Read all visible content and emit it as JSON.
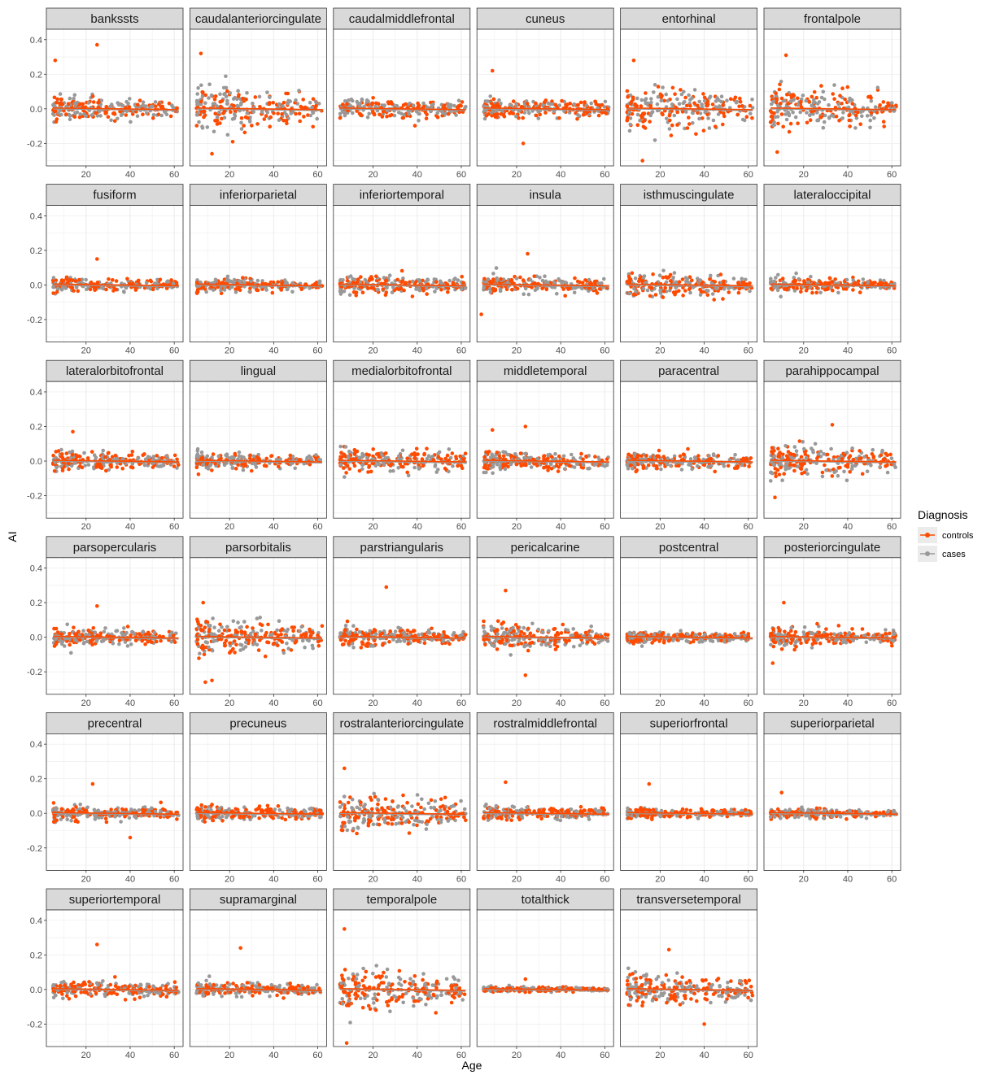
{
  "chart_data": {
    "type": "scatter",
    "facet_by": "region",
    "xlabel": "Age",
    "ylabel": "AI",
    "xlim": [
      2,
      64
    ],
    "ylim": [
      -0.33,
      0.46
    ],
    "x_ticks": [
      20,
      40,
      60
    ],
    "x_tick_labels": [
      "20",
      "40",
      "60"
    ],
    "y_ticks": [
      -0.2,
      0.0,
      0.2,
      0.4
    ],
    "y_tick_labels": [
      "-0.2",
      "0.0",
      "0.2",
      "0.4"
    ],
    "grid": true,
    "legend": {
      "title": "Diagnosis",
      "placement": "right",
      "entries": [
        {
          "label": "controls",
          "color": "#ff4a00"
        },
        {
          "label": "cases",
          "color": "#999999"
        }
      ]
    },
    "series_colors": {
      "controls": "#ff4a00",
      "cases": "#999999"
    },
    "facets": [
      {
        "title": "bankssts",
        "spread": 0.06,
        "age_min": 5,
        "age_max": 62,
        "outliers": [
          [
            25,
            0.37
          ],
          [
            6,
            0.28
          ]
        ]
      },
      {
        "title": "caudalanteriorcingulate",
        "spread": 0.1,
        "age_min": 5,
        "age_max": 62,
        "outliers": [
          [
            7,
            0.32
          ],
          [
            12,
            -0.26
          ]
        ]
      },
      {
        "title": "caudalmiddlefrontal",
        "spread": 0.05,
        "age_min": 5,
        "age_max": 62,
        "outliers": []
      },
      {
        "title": "cuneus",
        "spread": 0.05,
        "age_min": 5,
        "age_max": 62,
        "outliers": [
          [
            9,
            0.22
          ],
          [
            23,
            -0.2
          ]
        ]
      },
      {
        "title": "entorhinal",
        "spread": 0.1,
        "age_min": 5,
        "age_max": 62,
        "outliers": [
          [
            8,
            0.28
          ],
          [
            12,
            -0.3
          ]
        ]
      },
      {
        "title": "frontalpole",
        "spread": 0.1,
        "age_min": 5,
        "age_max": 62,
        "outliers": [
          [
            12,
            0.31
          ],
          [
            8,
            -0.25
          ]
        ]
      },
      {
        "title": "fusiform",
        "spread": 0.035,
        "age_min": 5,
        "age_max": 62,
        "outliers": [
          [
            25,
            0.15
          ]
        ]
      },
      {
        "title": "inferiorparietal",
        "spread": 0.035,
        "age_min": 5,
        "age_max": 62,
        "outliers": []
      },
      {
        "title": "inferiortemporal",
        "spread": 0.045,
        "age_min": 5,
        "age_max": 62,
        "outliers": []
      },
      {
        "title": "insula",
        "spread": 0.045,
        "age_min": 5,
        "age_max": 62,
        "outliers": [
          [
            25,
            0.18
          ],
          [
            4,
            -0.17
          ]
        ]
      },
      {
        "title": "isthmuscingulate",
        "spread": 0.06,
        "age_min": 5,
        "age_max": 62,
        "outliers": []
      },
      {
        "title": "lateraloccipital",
        "spread": 0.035,
        "age_min": 5,
        "age_max": 62,
        "outliers": []
      },
      {
        "title": "lateralorbitofrontal",
        "spread": 0.045,
        "age_min": 5,
        "age_max": 62,
        "outliers": [
          [
            14,
            0.17
          ]
        ]
      },
      {
        "title": "lingual",
        "spread": 0.04,
        "age_min": 5,
        "age_max": 62,
        "outliers": []
      },
      {
        "title": "medialorbitofrontal",
        "spread": 0.06,
        "age_min": 5,
        "age_max": 62,
        "outliers": []
      },
      {
        "title": "middletemporal",
        "spread": 0.045,
        "age_min": 5,
        "age_max": 62,
        "outliers": [
          [
            24,
            0.2
          ],
          [
            9,
            0.18
          ]
        ]
      },
      {
        "title": "paracentral",
        "spread": 0.045,
        "age_min": 5,
        "age_max": 62,
        "outliers": []
      },
      {
        "title": "parahippocampal",
        "spread": 0.07,
        "age_min": 5,
        "age_max": 62,
        "outliers": [
          [
            33,
            0.21
          ],
          [
            7,
            -0.21
          ]
        ]
      },
      {
        "title": "parsopercularis",
        "spread": 0.045,
        "age_min": 5,
        "age_max": 62,
        "outliers": [
          [
            25,
            0.18
          ]
        ]
      },
      {
        "title": "parsorbitalis",
        "spread": 0.08,
        "age_min": 5,
        "age_max": 62,
        "outliers": [
          [
            12,
            -0.25
          ],
          [
            9,
            -0.26
          ],
          [
            8,
            0.2
          ]
        ]
      },
      {
        "title": "parstriangularis",
        "spread": 0.045,
        "age_min": 5,
        "age_max": 62,
        "outliers": [
          [
            26,
            0.29
          ]
        ]
      },
      {
        "title": "pericalcarine",
        "spread": 0.06,
        "age_min": 5,
        "age_max": 62,
        "outliers": [
          [
            15,
            0.27
          ],
          [
            24,
            -0.22
          ]
        ]
      },
      {
        "title": "postcentral",
        "spread": 0.03,
        "age_min": 5,
        "age_max": 62,
        "outliers": []
      },
      {
        "title": "posteriorcingulate",
        "spread": 0.045,
        "age_min": 5,
        "age_max": 62,
        "outliers": [
          [
            11,
            0.2
          ],
          [
            6,
            -0.15
          ]
        ]
      },
      {
        "title": "precentral",
        "spread": 0.035,
        "age_min": 5,
        "age_max": 62,
        "outliers": [
          [
            40,
            -0.14
          ],
          [
            23,
            0.17
          ]
        ]
      },
      {
        "title": "precuneus",
        "spread": 0.035,
        "age_min": 5,
        "age_max": 62,
        "outliers": []
      },
      {
        "title": "rostralanteriorcingulate",
        "spread": 0.09,
        "age_min": 5,
        "age_max": 62,
        "outliers": [
          [
            7,
            0.26
          ]
        ]
      },
      {
        "title": "rostralmiddlefrontal",
        "spread": 0.035,
        "age_min": 5,
        "age_max": 62,
        "outliers": [
          [
            15,
            0.18
          ]
        ]
      },
      {
        "title": "superiorfrontal",
        "spread": 0.025,
        "age_min": 5,
        "age_max": 62,
        "outliers": [
          [
            15,
            0.17
          ]
        ]
      },
      {
        "title": "superiorparietal",
        "spread": 0.025,
        "age_min": 5,
        "age_max": 62,
        "outliers": [
          [
            10,
            0.12
          ]
        ]
      },
      {
        "title": "superiortemporal",
        "spread": 0.04,
        "age_min": 5,
        "age_max": 62,
        "outliers": [
          [
            25,
            0.26
          ]
        ]
      },
      {
        "title": "supramarginal",
        "spread": 0.035,
        "age_min": 5,
        "age_max": 62,
        "outliers": [
          [
            25,
            0.24
          ]
        ]
      },
      {
        "title": "temporalpole",
        "spread": 0.1,
        "age_min": 5,
        "age_max": 62,
        "outliers": [
          [
            7,
            0.35
          ],
          [
            8,
            -0.31
          ]
        ]
      },
      {
        "title": "totalthick",
        "spread": 0.012,
        "age_min": 5,
        "age_max": 62,
        "outliers": [
          [
            24,
            0.06
          ]
        ]
      },
      {
        "title": "transversetemporal",
        "spread": 0.07,
        "age_min": 5,
        "age_max": 62,
        "outliers": [
          [
            24,
            0.23
          ],
          [
            40,
            -0.2
          ]
        ]
      }
    ]
  }
}
